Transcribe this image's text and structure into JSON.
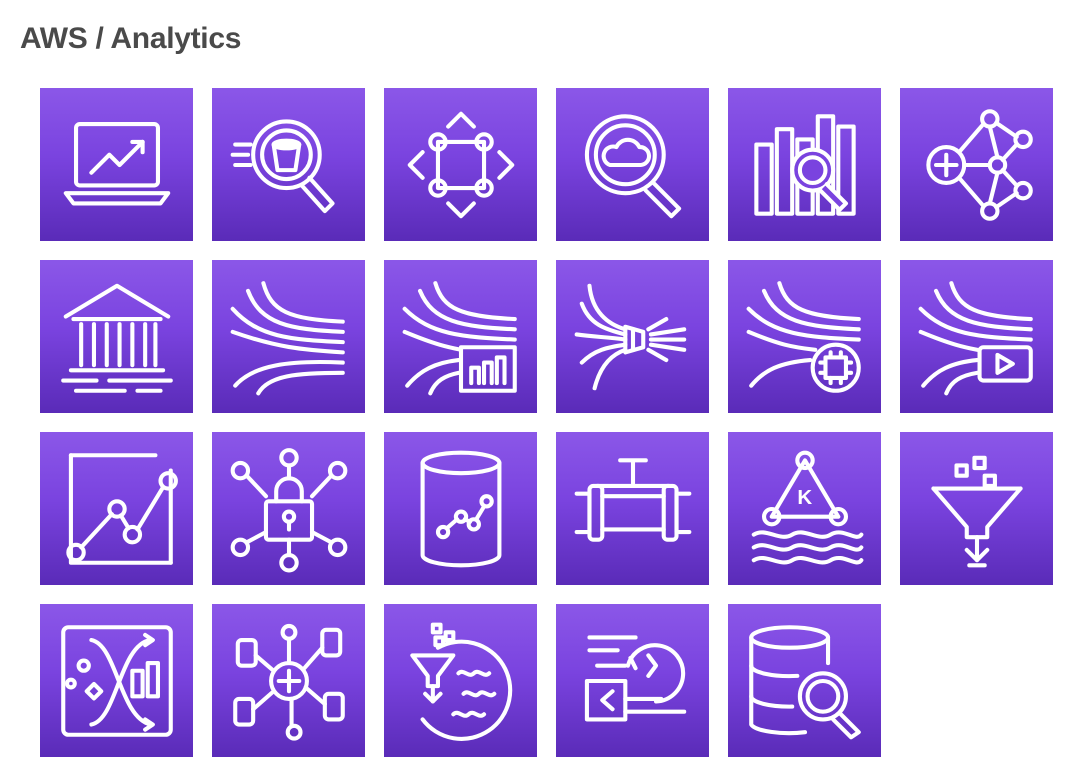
{
  "header": {
    "title": "AWS / Analytics"
  },
  "theme": {
    "tile_gradient_top": "#8b57e8",
    "tile_gradient_bottom": "#5a2bb8",
    "icon_color": "#ffffff"
  },
  "icons": [
    "laptop-chart-icon",
    "athena-bucket-search-icon",
    "emr-node-diamond-icon",
    "cloudsearch-magnifier-icon",
    "bar-columns-search-icon",
    "data-pipeline-network-icon",
    "lake-formation-building-icon",
    "kinesis-streams-icon",
    "kinesis-analytics-icon",
    "kinesis-firehose-icon",
    "kinesis-data-streams-icon",
    "kinesis-video-icon",
    "quicksight-line-chart-icon",
    "data-exchange-lock-icon",
    "database-chart-cylinder-icon",
    "data-pipeline-pipe-icon",
    "msk-kafka-triangle-icon",
    "glue-databrew-funnel-icon",
    "data-flow-chart-icon",
    "managed-network-plus-icon",
    "glue-filter-circle-icon",
    "data-exchange-arrows-icon",
    "database-search-icon"
  ]
}
